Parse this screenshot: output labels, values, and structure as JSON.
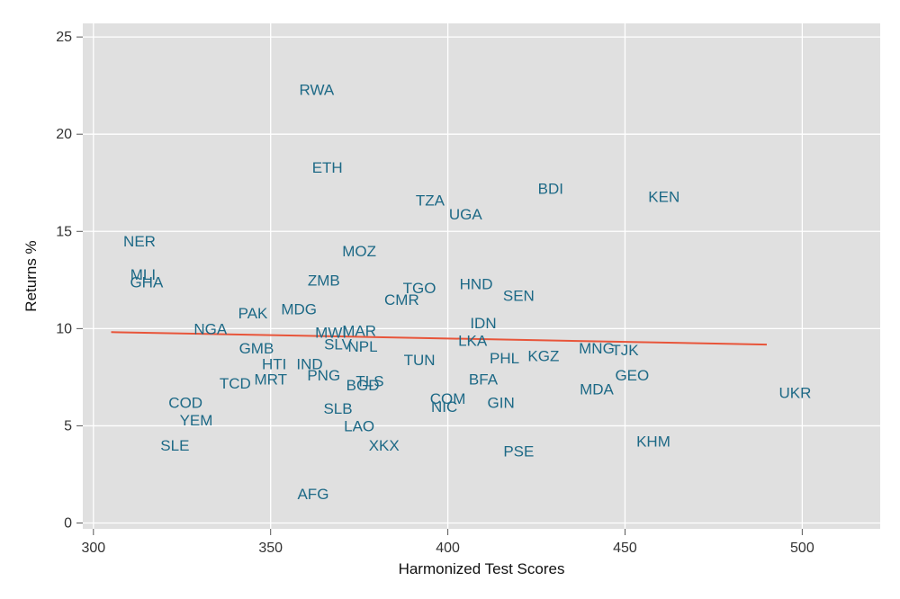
{
  "chart_data": {
    "type": "scatter",
    "title": "",
    "xlabel": "Harmonized Test Scores",
    "ylabel": "Returns %",
    "xlim": [
      297,
      522
    ],
    "ylim": [
      -0.3,
      25.7
    ],
    "x_ticks": [
      300,
      350,
      400,
      450,
      500
    ],
    "y_ticks": [
      0,
      5,
      10,
      15,
      20,
      25
    ],
    "grid": true,
    "legend": "none",
    "colors": {
      "background": "#e0e0e0",
      "grid": "#ffffff",
      "label": "#1d6986",
      "fit_line": "#e8553a"
    },
    "points": [
      {
        "label": "RWA",
        "x": 363,
        "y": 22.3
      },
      {
        "label": "ETH",
        "x": 366,
        "y": 18.3
      },
      {
        "label": "BDI",
        "x": 429,
        "y": 17.2
      },
      {
        "label": "KEN",
        "x": 461,
        "y": 16.8
      },
      {
        "label": "TZA",
        "x": 395,
        "y": 16.6
      },
      {
        "label": "UGA",
        "x": 405,
        "y": 15.9
      },
      {
        "label": "NER",
        "x": 313,
        "y": 14.5
      },
      {
        "label": "MOZ",
        "x": 375,
        "y": 14.0
      },
      {
        "label": "MLI",
        "x": 314,
        "y": 12.8
      },
      {
        "label": "GHA",
        "x": 315,
        "y": 12.4
      },
      {
        "label": "ZMB",
        "x": 365,
        "y": 12.5
      },
      {
        "label": "HND",
        "x": 408,
        "y": 12.3
      },
      {
        "label": "TGO",
        "x": 392,
        "y": 12.1
      },
      {
        "label": "SEN",
        "x": 420,
        "y": 11.7
      },
      {
        "label": "CMR",
        "x": 387,
        "y": 11.5
      },
      {
        "label": "MDG",
        "x": 358,
        "y": 11.0
      },
      {
        "label": "PAK",
        "x": 345,
        "y": 10.8
      },
      {
        "label": "IDN",
        "x": 410,
        "y": 10.3
      },
      {
        "label": "NGA",
        "x": 333,
        "y": 10.0
      },
      {
        "label": "MWI",
        "x": 367,
        "y": 9.8
      },
      {
        "label": "MAR",
        "x": 375,
        "y": 9.9
      },
      {
        "label": "LKA",
        "x": 407,
        "y": 9.4
      },
      {
        "label": "SLV",
        "x": 369,
        "y": 9.2
      },
      {
        "label": "NPL",
        "x": 376,
        "y": 9.1
      },
      {
        "label": "MNG",
        "x": 442,
        "y": 9.0
      },
      {
        "label": "TJK",
        "x": 450,
        "y": 8.9
      },
      {
        "label": "GMB",
        "x": 346,
        "y": 9.0
      },
      {
        "label": "KGZ",
        "x": 427,
        "y": 8.6
      },
      {
        "label": "PHL",
        "x": 416,
        "y": 8.5
      },
      {
        "label": "TUN",
        "x": 392,
        "y": 8.4
      },
      {
        "label": "HTI",
        "x": 351,
        "y": 8.2
      },
      {
        "label": "IND",
        "x": 361,
        "y": 8.2
      },
      {
        "label": "PNG",
        "x": 365,
        "y": 7.6
      },
      {
        "label": "GEO",
        "x": 452,
        "y": 7.6
      },
      {
        "label": "BFA",
        "x": 410,
        "y": 7.4
      },
      {
        "label": "TCD",
        "x": 340,
        "y": 7.2
      },
      {
        "label": "MRT",
        "x": 350,
        "y": 7.4
      },
      {
        "label": "TLS",
        "x": 378,
        "y": 7.3
      },
      {
        "label": "BGD",
        "x": 376,
        "y": 7.1
      },
      {
        "label": "MDA",
        "x": 442,
        "y": 6.9
      },
      {
        "label": "UKR",
        "x": 498,
        "y": 6.7
      },
      {
        "label": "COM",
        "x": 400,
        "y": 6.4
      },
      {
        "label": "COD",
        "x": 326,
        "y": 6.2
      },
      {
        "label": "GIN",
        "x": 415,
        "y": 6.2
      },
      {
        "label": "NIC",
        "x": 399,
        "y": 6.0
      },
      {
        "label": "SLB",
        "x": 369,
        "y": 5.9
      },
      {
        "label": "YEM",
        "x": 329,
        "y": 5.3
      },
      {
        "label": "LAO",
        "x": 375,
        "y": 5.0
      },
      {
        "label": "KHM",
        "x": 458,
        "y": 4.2
      },
      {
        "label": "XKX",
        "x": 382,
        "y": 4.0
      },
      {
        "label": "SLE",
        "x": 323,
        "y": 4.0
      },
      {
        "label": "PSE",
        "x": 420,
        "y": 3.7
      },
      {
        "label": "AFG",
        "x": 362,
        "y": 1.5
      }
    ],
    "fit_line": {
      "x": [
        305,
        490
      ],
      "y": [
        9.82,
        9.18
      ]
    }
  }
}
